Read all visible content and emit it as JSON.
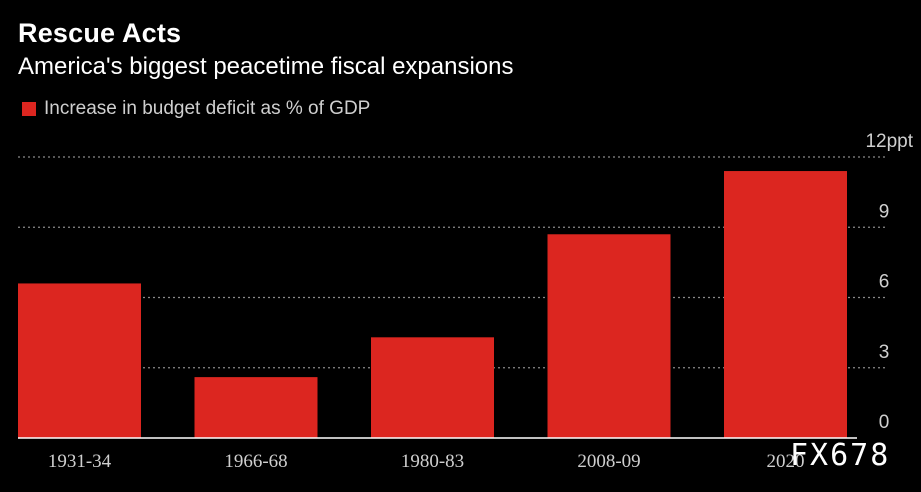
{
  "header": {
    "title": "Rescue Acts",
    "subtitle": "America's biggest peacetime fiscal expansions"
  },
  "legend": {
    "label": "Increase in budget deficit as % of GDP"
  },
  "watermark": "FX678",
  "colors": {
    "background": "#000000",
    "bar": "#dc2620",
    "grid": "#8a8a8a",
    "tick_text": "#cfcfcf"
  },
  "chart_data": {
    "type": "bar",
    "title": "Rescue Acts",
    "subtitle": "America's biggest peacetime fiscal expansions",
    "categories": [
      "1931-34",
      "1966-68",
      "1980-83",
      "2008-09",
      "2020"
    ],
    "series": [
      {
        "name": "Increase in budget deficit as % of GDP",
        "values": [
          6.6,
          2.6,
          4.3,
          8.7,
          11.4
        ]
      }
    ],
    "ylim": [
      0,
      12
    ],
    "yticks": [
      0,
      3,
      6,
      9,
      12
    ],
    "ytick_labels": [
      "0",
      "3",
      "6",
      "9",
      "12ppt"
    ],
    "xlabel": "",
    "ylabel": "",
    "grid": true,
    "legend_position": "top-left"
  }
}
